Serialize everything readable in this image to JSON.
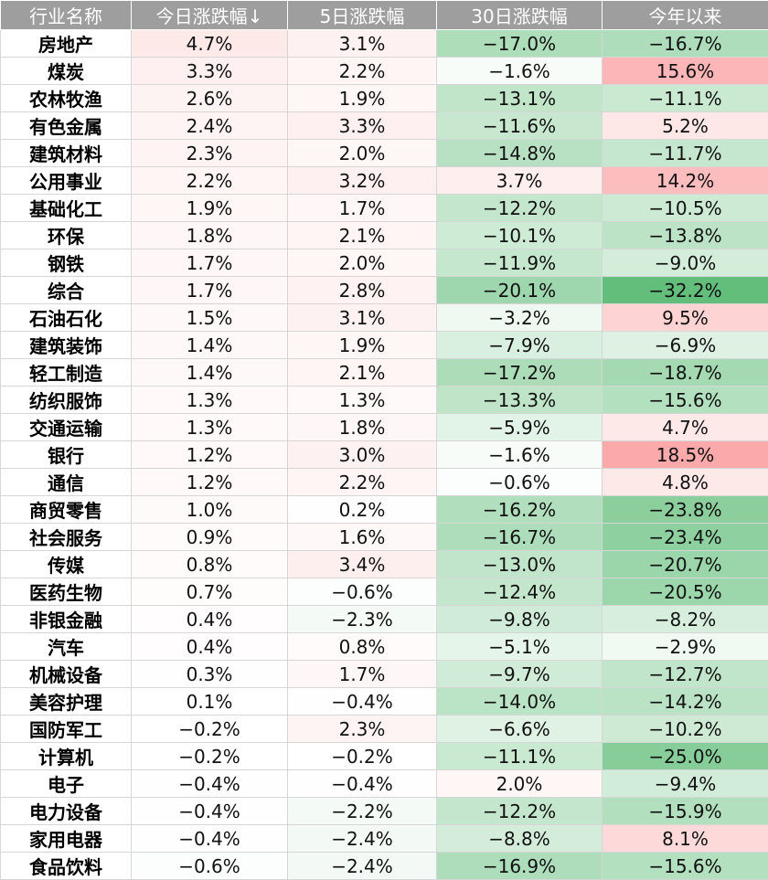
{
  "chart_data": {
    "type": "table",
    "columns": [
      "行业名称",
      "今日涨跌幅↓",
      "5日涨跌幅",
      "30日涨跌幅",
      "今年以来"
    ],
    "rows": [
      {
        "name": "房地产",
        "values": [
          "4.7%",
          "3.1%",
          "−17.0%",
          "−16.7%"
        ]
      },
      {
        "name": "煤炭",
        "values": [
          "3.3%",
          "2.2%",
          "−1.6%",
          "15.6%"
        ]
      },
      {
        "name": "农林牧渔",
        "values": [
          "2.6%",
          "1.9%",
          "−13.1%",
          "−11.1%"
        ]
      },
      {
        "name": "有色金属",
        "values": [
          "2.4%",
          "3.3%",
          "−11.6%",
          "5.2%"
        ]
      },
      {
        "name": "建筑材料",
        "values": [
          "2.3%",
          "2.0%",
          "−14.8%",
          "−11.7%"
        ]
      },
      {
        "name": "公用事业",
        "values": [
          "2.2%",
          "3.2%",
          "3.7%",
          "14.2%"
        ]
      },
      {
        "name": "基础化工",
        "values": [
          "1.9%",
          "1.7%",
          "−12.2%",
          "−10.5%"
        ]
      },
      {
        "name": "环保",
        "values": [
          "1.8%",
          "2.1%",
          "−10.1%",
          "−13.8%"
        ]
      },
      {
        "name": "钢铁",
        "values": [
          "1.7%",
          "2.0%",
          "−11.9%",
          "−9.0%"
        ]
      },
      {
        "name": "综合",
        "values": [
          "1.7%",
          "2.8%",
          "−20.1%",
          "−32.2%"
        ]
      },
      {
        "name": "石油石化",
        "values": [
          "1.5%",
          "3.1%",
          "−3.2%",
          "9.5%"
        ]
      },
      {
        "name": "建筑装饰",
        "values": [
          "1.4%",
          "1.9%",
          "−7.9%",
          "−6.9%"
        ]
      },
      {
        "name": "轻工制造",
        "values": [
          "1.4%",
          "2.1%",
          "−17.2%",
          "−18.7%"
        ]
      },
      {
        "name": "纺织服饰",
        "values": [
          "1.3%",
          "1.3%",
          "−13.3%",
          "−15.6%"
        ]
      },
      {
        "name": "交通运输",
        "values": [
          "1.3%",
          "1.8%",
          "−5.9%",
          "4.7%"
        ]
      },
      {
        "name": "银行",
        "values": [
          "1.2%",
          "3.0%",
          "−1.6%",
          "18.5%"
        ]
      },
      {
        "name": "通信",
        "values": [
          "1.2%",
          "2.2%",
          "−0.6%",
          "4.8%"
        ]
      },
      {
        "name": "商贸零售",
        "values": [
          "1.0%",
          "0.2%",
          "−16.2%",
          "−23.8%"
        ]
      },
      {
        "name": "社会服务",
        "values": [
          "0.9%",
          "1.6%",
          "−16.7%",
          "−23.4%"
        ]
      },
      {
        "name": "传媒",
        "values": [
          "0.8%",
          "3.4%",
          "−13.0%",
          "−20.7%"
        ]
      },
      {
        "name": "医药生物",
        "values": [
          "0.7%",
          "−0.6%",
          "−12.4%",
          "−20.5%"
        ]
      },
      {
        "name": "非银金融",
        "values": [
          "0.4%",
          "−2.3%",
          "−9.8%",
          "−8.2%"
        ]
      },
      {
        "name": "汽车",
        "values": [
          "0.4%",
          "0.8%",
          "−5.1%",
          "−2.9%"
        ]
      },
      {
        "name": "机械设备",
        "values": [
          "0.3%",
          "1.7%",
          "−9.7%",
          "−12.7%"
        ]
      },
      {
        "name": "美容护理",
        "values": [
          "0.1%",
          "−0.4%",
          "−14.0%",
          "−14.2%"
        ]
      },
      {
        "name": "国防军工",
        "values": [
          "−0.2%",
          "2.3%",
          "−6.6%",
          "−10.2%"
        ]
      },
      {
        "name": "计算机",
        "values": [
          "−0.2%",
          "−0.2%",
          "−11.1%",
          "−25.0%"
        ]
      },
      {
        "name": "电子",
        "values": [
          "−0.4%",
          "−0.4%",
          "2.0%",
          "−9.4%"
        ]
      },
      {
        "name": "电力设备",
        "values": [
          "−0.4%",
          "−2.2%",
          "−12.2%",
          "−15.9%"
        ]
      },
      {
        "name": "家用电器",
        "values": [
          "−0.4%",
          "−2.4%",
          "−8.8%",
          "8.1%"
        ]
      },
      {
        "name": "食品饮料",
        "values": [
          "−0.6%",
          "−2.4%",
          "−16.9%",
          "−15.6%"
        ]
      }
    ],
    "colors": {
      "header_bg": "#9e9e9e",
      "header_text": "#ffffff",
      "positive": "#f8696b",
      "negative": "#63be7b",
      "neutral": "#ffffff",
      "border": "#d6d6d6"
    },
    "color_scale_max_abs": 32.2
  }
}
